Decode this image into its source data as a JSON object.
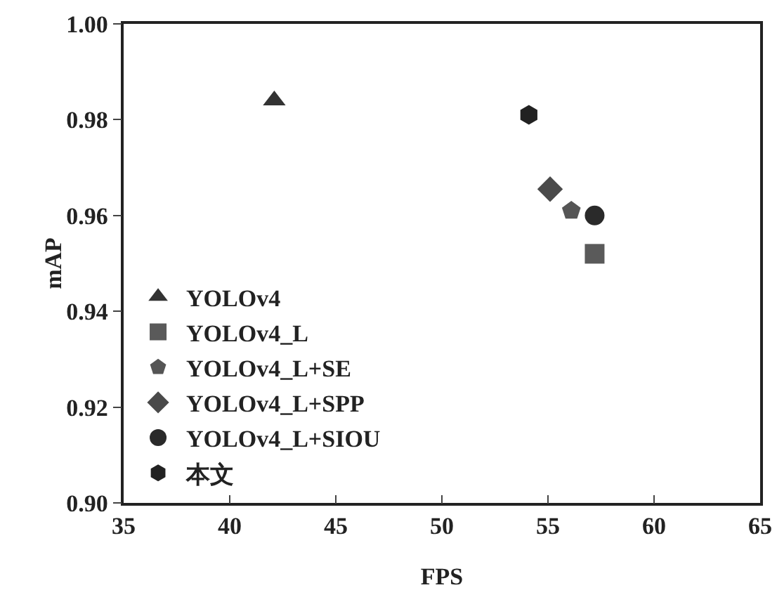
{
  "chart_data": {
    "type": "scatter",
    "xlabel": "FPS",
    "ylabel": "mAP",
    "xlim": [
      35,
      65
    ],
    "xticks": [
      35,
      40,
      45,
      50,
      55,
      60,
      65
    ],
    "ylim": [
      0.9,
      1.0
    ],
    "yticks": [
      {
        "value": 0.9,
        "label": "0.90"
      },
      {
        "value": 0.92,
        "label": "0.92"
      },
      {
        "value": 0.94,
        "label": "0.94"
      },
      {
        "value": 0.96,
        "label": "0.96"
      },
      {
        "value": 0.98,
        "label": "0.98"
      },
      {
        "value": 1.0,
        "label": "1.00"
      }
    ],
    "grid": false,
    "legend": "bottom left",
    "series": [
      {
        "name": "YOLOv4",
        "color": "#333333",
        "marker": "triangle",
        "x": [
          42.1
        ],
        "values": [
          0.984
        ]
      },
      {
        "name": "YOLOv4_L",
        "color": "#5a5a5a",
        "marker": "square",
        "x": [
          57.2
        ],
        "values": [
          0.952
        ]
      },
      {
        "name": "YOLOv4_L+SE",
        "color": "#555555",
        "x": [
          56.1
        ],
        "values": [
          0.961
        ]
      },
      {
        "name": "YOLOv4_L+SPP",
        "color": "#4a4a4a",
        "marker": "diamond",
        "x": [
          55.1
        ],
        "values": [
          0.9655
        ]
      },
      {
        "name": "YOLOv4_L+SIOU",
        "color": "#2a2a2a",
        "marker": "circle",
        "x": [
          57.2
        ],
        "values": [
          0.96
        ]
      },
      {
        "name": "本文",
        "color": "#222222",
        "x": [
          54.1
        ],
        "values": [
          0.981
        ]
      }
    ]
  }
}
